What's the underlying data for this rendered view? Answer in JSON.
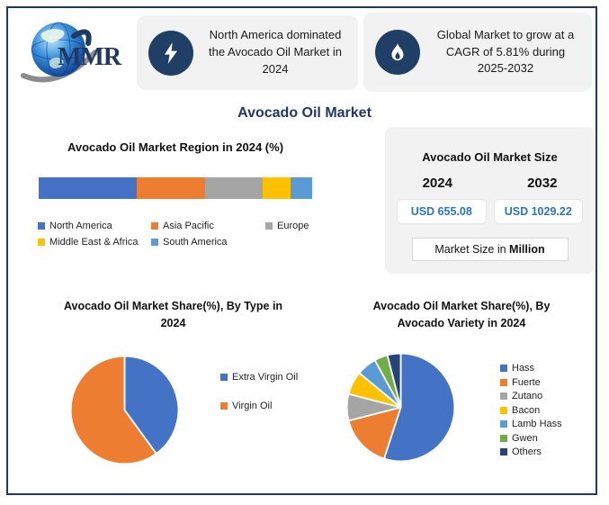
{
  "logo": {
    "text": "MMR"
  },
  "header": {
    "callouts": [
      {
        "icon": "lightning-icon",
        "text": "North America dominated the Avocado Oil Market in 2024"
      },
      {
        "icon": "flame-icon",
        "text": "Global Market to grow at a CAGR of 5.81% during 2025-2032"
      }
    ]
  },
  "title": "Avocado Oil Market",
  "market_size": {
    "title": "Avocado Oil Market Size",
    "years": [
      "2024",
      "2032"
    ],
    "values": [
      "USD 655.08",
      "USD 1029.22"
    ],
    "note_prefix": "Market Size in ",
    "note_bold": "Million"
  },
  "colors": {
    "accent_navy": "#1F3864",
    "icon_circle_navy": "#1F3F66",
    "panel_bg": "#F2F2F2",
    "value_blue": "#2E75B6"
  },
  "chart_data": [
    {
      "type": "bar",
      "variant": "stacked-horizontal",
      "title": "Avocado Oil Market Region in 2024 (%)",
      "categories": [
        "North America",
        "Asia Pacific",
        "Europe",
        "Middle East & Africa",
        "South America"
      ],
      "values": [
        36,
        25,
        21,
        10,
        8
      ],
      "colors": [
        "#4472C4",
        "#ED7D31",
        "#A5A5A5",
        "#FFC000",
        "#5B9BD5"
      ],
      "xlim": [
        0,
        100
      ],
      "grid": false,
      "legend_position": "bottom"
    },
    {
      "type": "pie",
      "title": "Avocado Oil Market Share(%), By Type in 2024",
      "title_lines": [
        "Avocado Oil Market Share(%), By Type in",
        "2024"
      ],
      "categories": [
        "Extra Virgin Oil",
        "Virgin Oil"
      ],
      "values": [
        40,
        60
      ],
      "colors": [
        "#4472C4",
        "#ED7D31"
      ],
      "legend_position": "right"
    },
    {
      "type": "pie",
      "title": "Avocado Oil Market Share(%), By Avocado Variety in 2024",
      "title_lines": [
        "Avocado Oil Market Share(%), By",
        "Avocado Variety in 2024"
      ],
      "categories": [
        "Hass",
        "Fuerte",
        "Zutano",
        "Bacon",
        "Lamb Hass",
        "Gwen",
        "Others"
      ],
      "values": [
        55,
        16,
        8,
        7,
        6,
        4,
        4
      ],
      "colors": [
        "#4472C4",
        "#ED7D31",
        "#A5A5A5",
        "#FFC000",
        "#5B9BD5",
        "#70AD47",
        "#264478"
      ],
      "legend_position": "right"
    }
  ]
}
